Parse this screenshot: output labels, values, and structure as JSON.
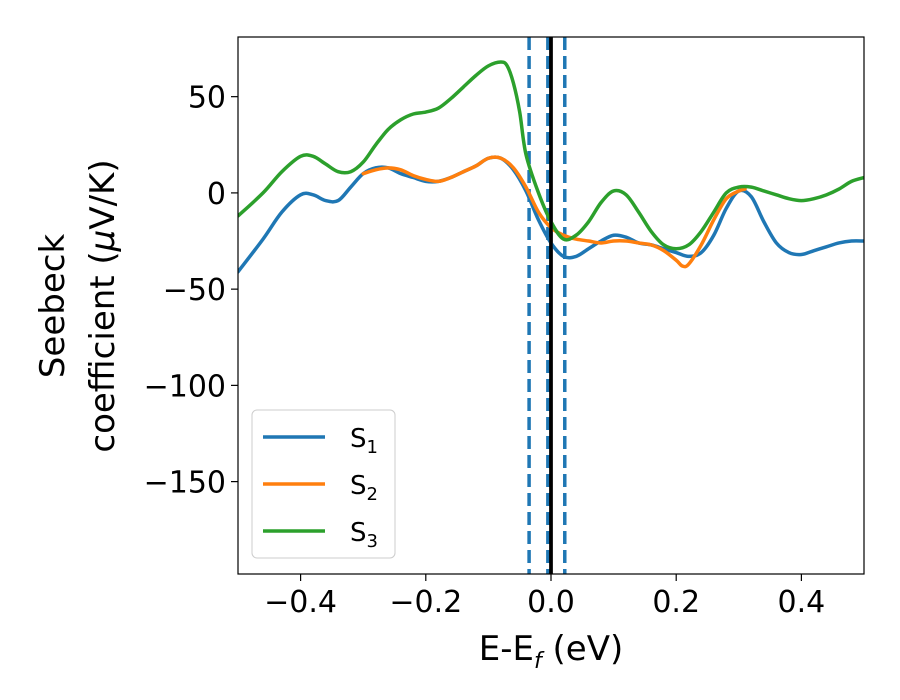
{
  "chart_data": {
    "type": "line",
    "xlabel": "E-E",
    "xlabel_sub": "f",
    "xlabel_unit": " (eV)",
    "ylabel_line1": "Seebeck",
    "ylabel_line2": "coefficient  (",
    "ylabel_mu": "μ",
    "ylabel_unit": "V/K)",
    "xlim": [
      -0.5,
      0.5
    ],
    "ylim": [
      -198,
      81
    ],
    "xticks": [
      -0.4,
      -0.2,
      0.0,
      0.2,
      0.4
    ],
    "xtick_labels": [
      "−0.4",
      "−0.2",
      "0.0",
      "0.2",
      "0.4"
    ],
    "yticks": [
      50,
      0,
      -50,
      -100,
      -150
    ],
    "ytick_labels": [
      "50",
      "0",
      "−50",
      "−100",
      "−150"
    ],
    "grid": false,
    "legend_position": "lower-left",
    "vlines": [
      {
        "x": -0.035,
        "style": "dashed",
        "color": "#1f77b4"
      },
      {
        "x": -0.005,
        "style": "dashed",
        "color": "#1f77b4"
      },
      {
        "x": 0.022,
        "style": "dashed",
        "color": "#1f77b4"
      },
      {
        "x": 0.0,
        "style": "solid",
        "color": "#000000"
      }
    ],
    "series": [
      {
        "name": "S",
        "name_sub": "1",
        "color": "#1f77b4",
        "x": [
          -0.5,
          -0.46,
          -0.43,
          -0.4,
          -0.38,
          -0.36,
          -0.34,
          -0.32,
          -0.3,
          -0.28,
          -0.26,
          -0.24,
          -0.22,
          -0.2,
          -0.18,
          -0.16,
          -0.14,
          -0.12,
          -0.1,
          -0.08,
          -0.06,
          -0.04,
          -0.02,
          0.0,
          0.02,
          0.04,
          0.06,
          0.08,
          0.1,
          0.12,
          0.14,
          0.16,
          0.18,
          0.2,
          0.22,
          0.24,
          0.26,
          0.28,
          0.3,
          0.32,
          0.34,
          0.36,
          0.38,
          0.4,
          0.42,
          0.44,
          0.46,
          0.48,
          0.5
        ],
        "y": [
          -41,
          -24,
          -10,
          -1,
          -1,
          -4,
          -4,
          3,
          10,
          13,
          13,
          10,
          8,
          6,
          6,
          8,
          11,
          14,
          18,
          18,
          12,
          1,
          -14,
          -26,
          -33,
          -33,
          -29,
          -25,
          -22,
          -23,
          -26,
          -27,
          -29,
          -31,
          -33,
          -31,
          -22,
          -8,
          1,
          -2,
          -15,
          -26,
          -31,
          -32,
          -30,
          -28,
          -26,
          -25,
          -25
        ]
      },
      {
        "name": "S",
        "name_sub": "2",
        "color": "#ff7f0e",
        "x": [
          -0.3,
          -0.28,
          -0.26,
          -0.24,
          -0.22,
          -0.2,
          -0.18,
          -0.16,
          -0.14,
          -0.12,
          -0.1,
          -0.08,
          -0.06,
          -0.04,
          -0.02,
          0.0,
          0.02,
          0.04,
          0.06,
          0.08,
          0.1,
          0.12,
          0.14,
          0.16,
          0.18,
          0.2,
          0.21,
          0.22,
          0.24,
          0.26,
          0.28,
          0.3,
          0.31
        ],
        "y": [
          10,
          12,
          13,
          12,
          9,
          7,
          6,
          8,
          11,
          14,
          18,
          18,
          13,
          3,
          -10,
          -18,
          -22,
          -24,
          -25,
          -26,
          -25,
          -25,
          -26,
          -27,
          -30,
          -35,
          -38,
          -37,
          -27,
          -14,
          -3,
          1,
          2
        ]
      },
      {
        "name": "S",
        "name_sub": "3",
        "color": "#2ca02c",
        "x": [
          -0.5,
          -0.46,
          -0.43,
          -0.4,
          -0.38,
          -0.36,
          -0.34,
          -0.32,
          -0.3,
          -0.28,
          -0.26,
          -0.24,
          -0.22,
          -0.2,
          -0.18,
          -0.16,
          -0.14,
          -0.12,
          -0.1,
          -0.08,
          -0.07,
          -0.06,
          -0.05,
          -0.04,
          -0.02,
          0.0,
          0.02,
          0.04,
          0.06,
          0.08,
          0.1,
          0.12,
          0.14,
          0.16,
          0.18,
          0.2,
          0.22,
          0.24,
          0.26,
          0.28,
          0.3,
          0.32,
          0.34,
          0.36,
          0.38,
          0.4,
          0.42,
          0.44,
          0.46,
          0.48,
          0.5
        ],
        "y": [
          -12,
          0,
          11,
          19,
          19,
          15,
          11,
          11,
          16,
          25,
          33,
          38,
          41,
          42,
          44,
          49,
          55,
          61,
          66,
          68,
          66,
          57,
          42,
          20,
          0,
          -15,
          -24,
          -22,
          -15,
          -5,
          1,
          -1,
          -10,
          -20,
          -27,
          -29,
          -27,
          -20,
          -10,
          0,
          3,
          3,
          1,
          -1,
          -3,
          -4,
          -3,
          -1,
          2,
          6,
          8
        ]
      }
    ]
  }
}
